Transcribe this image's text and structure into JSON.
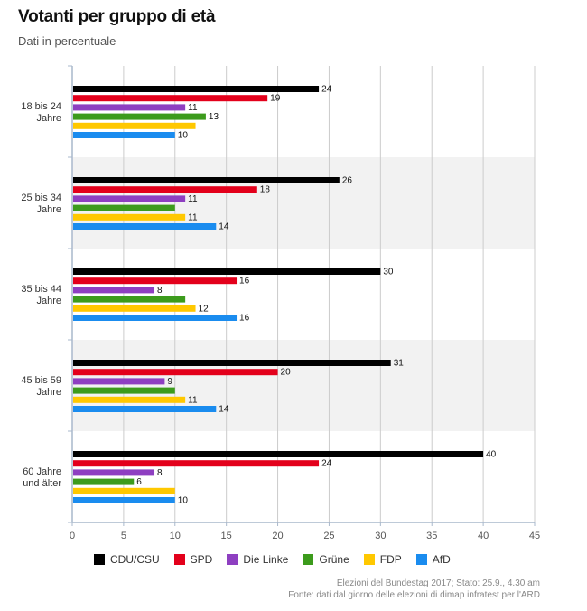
{
  "title": "Votanti per gruppo di età",
  "subtitle": "Dati in percentuale",
  "source_line1": "Elezioni del Bundestag 2017; Stato: 25.9., 4.30 am",
  "source_line2": "Fonte: dati dal giorno delle elezioni di dimap infratest per l'ARD",
  "colors": {
    "CDU/CSU": "#000000",
    "SPD": "#e3001b",
    "Die Linke": "#8e3fc1",
    "Grüne": "#3c9b1c",
    "FDP": "#ffc800",
    "AfD": "#1a8cef",
    "band": "#f2f2f2",
    "grid": "#cccccc",
    "axis": "#a9b8cc"
  },
  "chart_data": {
    "type": "bar",
    "orientation": "horizontal",
    "title": "Votanti per gruppo di età",
    "subtitle": "Dati in percentuale",
    "xlim": [
      0,
      45
    ],
    "xticks": [
      "0",
      "5",
      "10",
      "15",
      "20",
      "25",
      "30",
      "35",
      "40",
      "45"
    ],
    "grid": true,
    "legend_position": "bottom",
    "categories": [
      [
        "18 bis 24",
        "Jahre"
      ],
      [
        "25 bis 34",
        "Jahre"
      ],
      [
        "35 bis 44",
        "Jahre"
      ],
      [
        "45 bis 59",
        "Jahre"
      ],
      [
        "60 Jahre",
        "und älter"
      ]
    ],
    "series": [
      {
        "name": "CDU/CSU",
        "values": [
          24,
          26,
          30,
          31,
          40
        ],
        "labels": [
          "24",
          "26",
          "30",
          "31",
          "40"
        ]
      },
      {
        "name": "SPD",
        "values": [
          19,
          18,
          16,
          20,
          24
        ],
        "labels": [
          "19",
          "18",
          "16",
          "20",
          "24"
        ]
      },
      {
        "name": "Die Linke",
        "values": [
          11,
          11,
          8,
          9,
          8
        ],
        "labels": [
          "11",
          "11",
          "8",
          "9",
          "8"
        ]
      },
      {
        "name": "Grüne",
        "values": [
          13,
          10,
          11,
          10,
          6
        ],
        "labels": [
          "13",
          "",
          "",
          "",
          "6"
        ]
      },
      {
        "name": "FDP",
        "values": [
          12,
          11,
          12,
          11,
          10
        ],
        "labels": [
          "",
          "11",
          "12",
          "11",
          ""
        ]
      },
      {
        "name": "AfD",
        "values": [
          10,
          14,
          16,
          14,
          10
        ],
        "labels": [
          "10",
          "14",
          "16",
          "14",
          "10"
        ]
      }
    ]
  }
}
